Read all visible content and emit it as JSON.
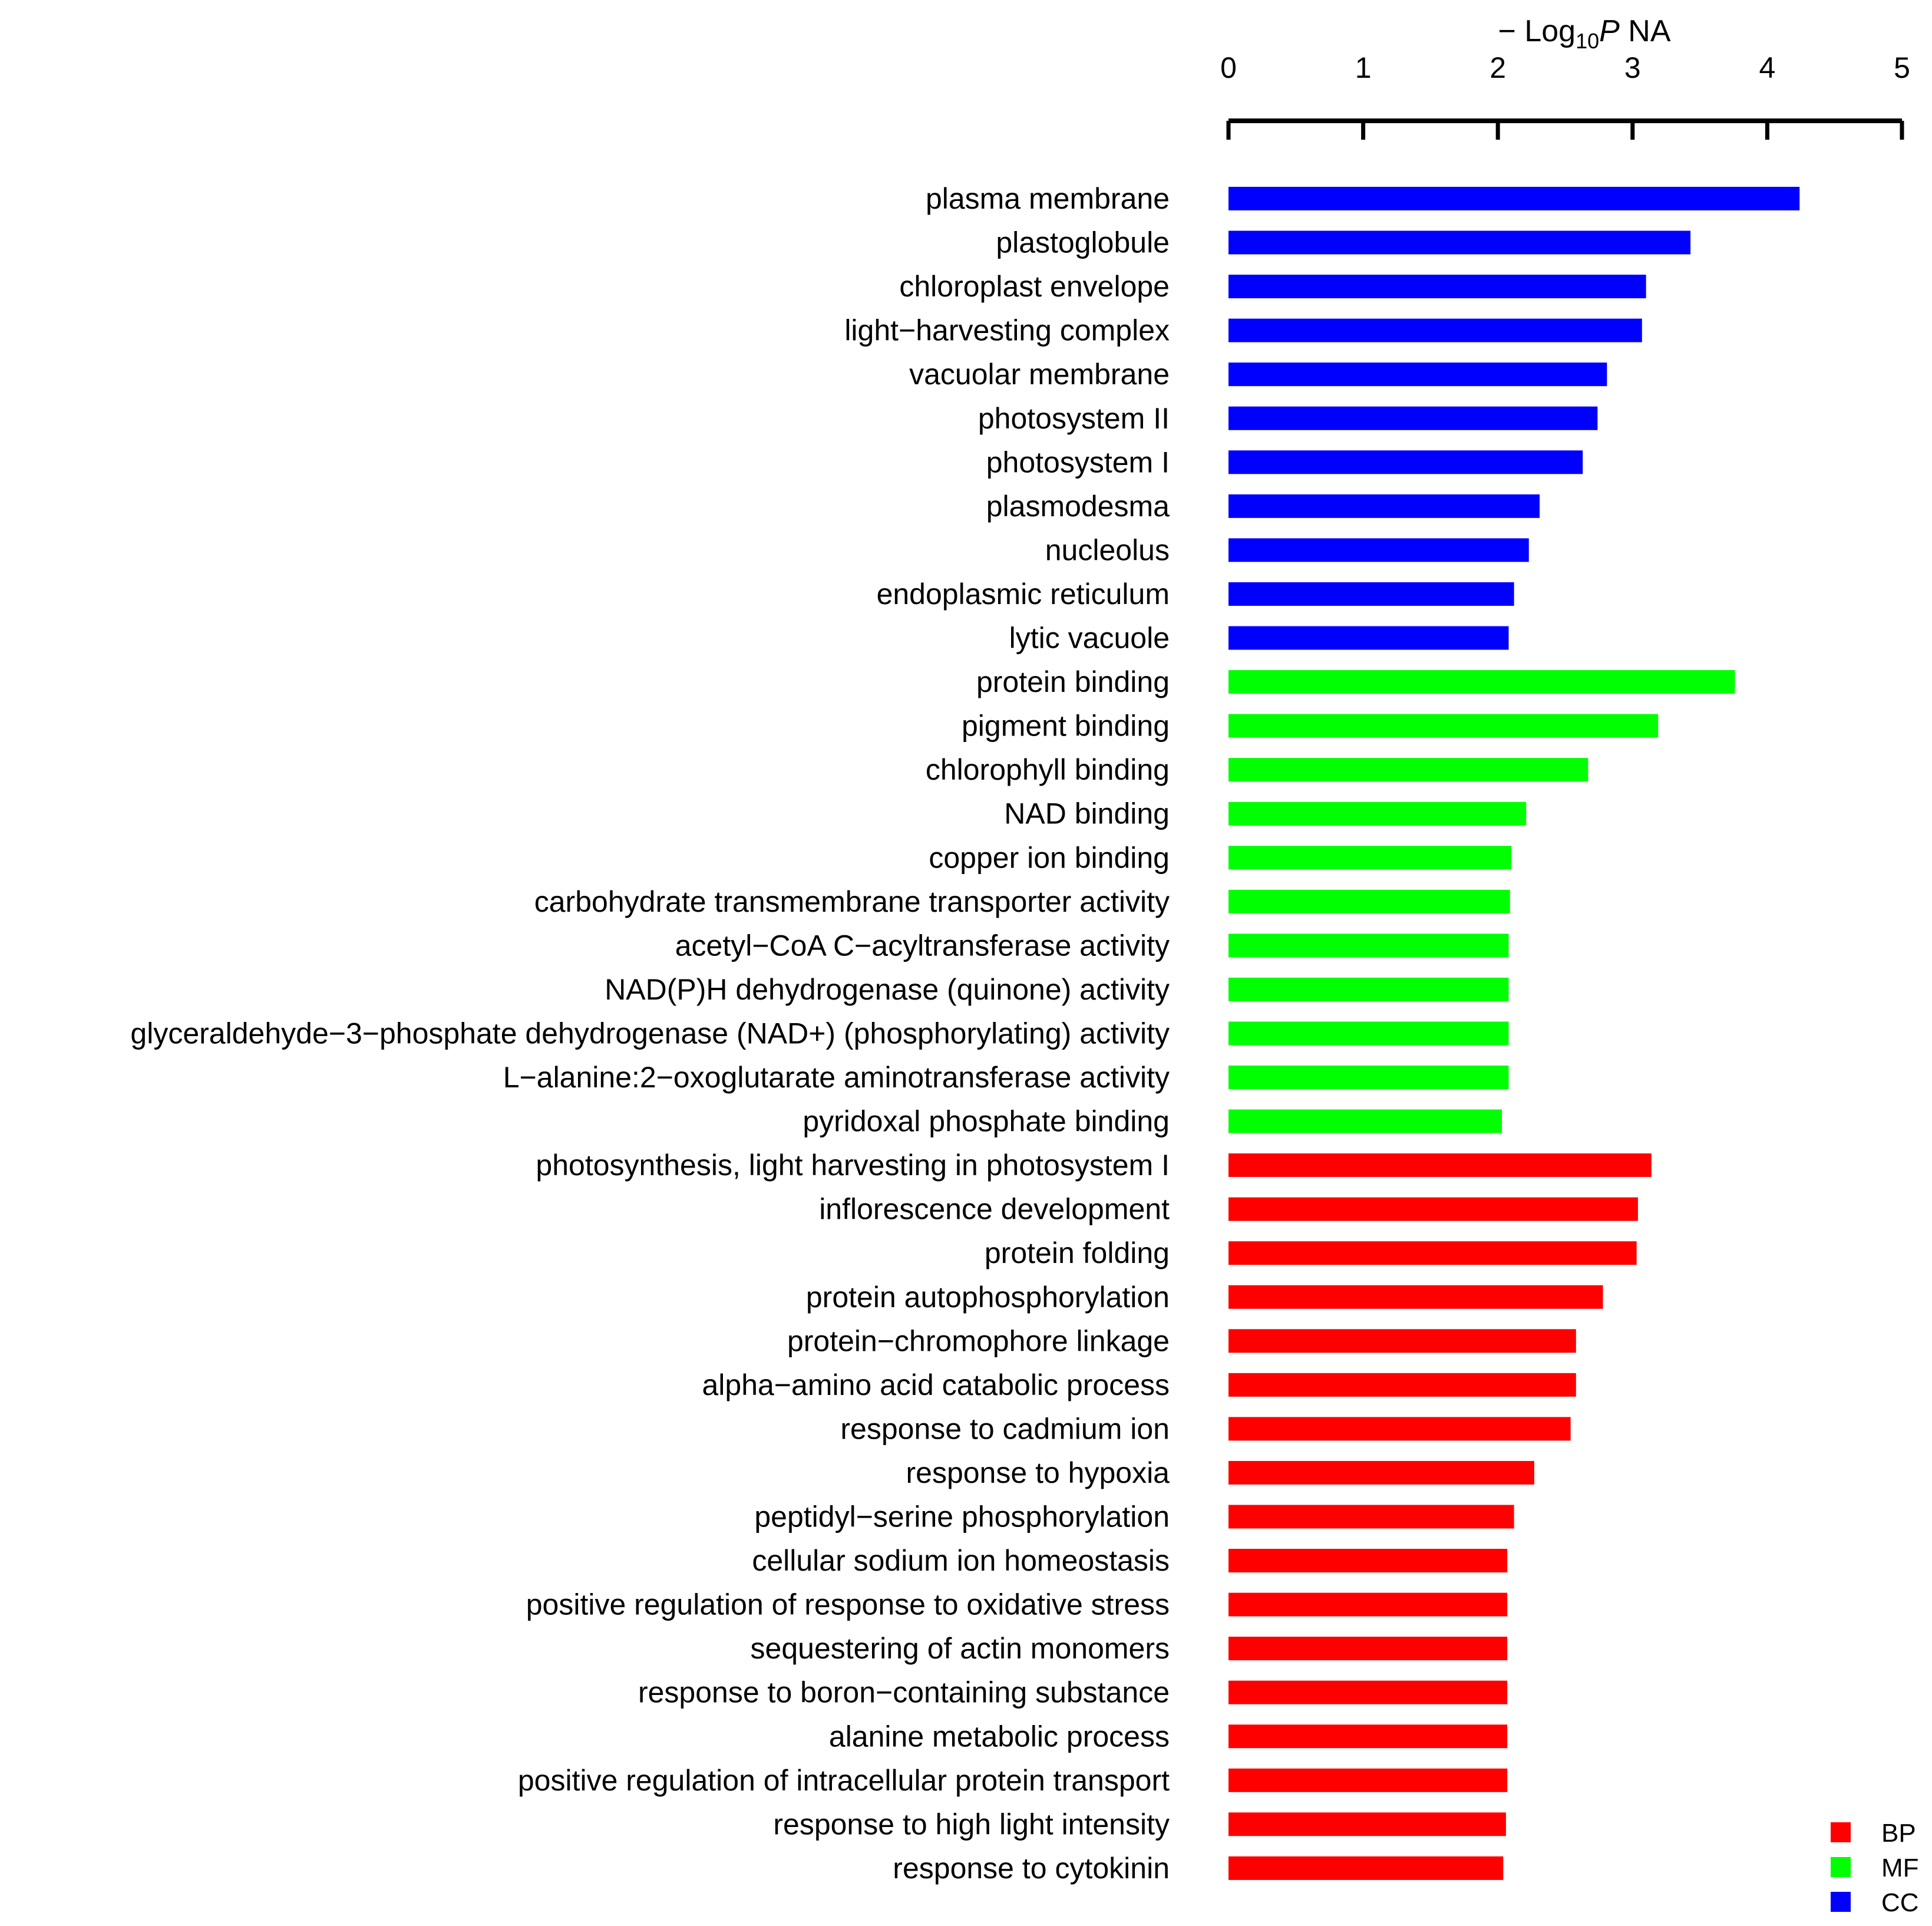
{
  "chart_data": {
    "type": "bar",
    "orientation": "horizontal",
    "axis_title": {
      "prefix": "− Log",
      "subscript": "10",
      "variable": "P",
      "suffix": " NA"
    },
    "xlim": [
      0,
      5
    ],
    "xticks": [
      "0",
      "1",
      "2",
      "3",
      "4",
      "5"
    ],
    "axis_position": "top",
    "grid": false,
    "legend_position": "bottom-right",
    "colors": {
      "BP": "#ff0000",
      "MF": "#00ff00",
      "CC": "#0000ff"
    },
    "legend": [
      {
        "label": "BP",
        "color": "#ff0000"
      },
      {
        "label": "MF",
        "color": "#00ff00"
      },
      {
        "label": "CC",
        "color": "#0000ff"
      }
    ],
    "bars": [
      {
        "label": "plasma membrane",
        "value": 4.24,
        "group": "CC"
      },
      {
        "label": "plastoglobule",
        "value": 3.43,
        "group": "CC"
      },
      {
        "label": "chloroplast envelope",
        "value": 3.1,
        "group": "CC"
      },
      {
        "label": "light−harvesting complex",
        "value": 3.07,
        "group": "CC"
      },
      {
        "label": "vacuolar membrane",
        "value": 2.81,
        "group": "CC"
      },
      {
        "label": "photosystem II",
        "value": 2.74,
        "group": "CC"
      },
      {
        "label": "photosystem I",
        "value": 2.63,
        "group": "CC"
      },
      {
        "label": "plasmodesma",
        "value": 2.31,
        "group": "CC"
      },
      {
        "label": "nucleolus",
        "value": 2.23,
        "group": "CC"
      },
      {
        "label": "endoplasmic reticulum",
        "value": 2.12,
        "group": "CC"
      },
      {
        "label": "lytic vacuole",
        "value": 2.08,
        "group": "CC"
      },
      {
        "label": "protein binding",
        "value": 3.76,
        "group": "MF"
      },
      {
        "label": "pigment binding",
        "value": 3.19,
        "group": "MF"
      },
      {
        "label": "chlorophyll binding",
        "value": 2.67,
        "group": "MF"
      },
      {
        "label": "NAD binding",
        "value": 2.21,
        "group": "MF"
      },
      {
        "label": "copper ion binding",
        "value": 2.1,
        "group": "MF"
      },
      {
        "label": "carbohydrate transmembrane transporter activity",
        "value": 2.09,
        "group": "MF"
      },
      {
        "label": "acetyl−CoA C−acyltransferase activity",
        "value": 2.08,
        "group": "MF"
      },
      {
        "label": "NAD(P)H dehydrogenase (quinone) activity",
        "value": 2.08,
        "group": "MF"
      },
      {
        "label": "glyceraldehyde−3−phosphate dehydrogenase (NAD+) (phosphorylating) activity",
        "value": 2.08,
        "group": "MF"
      },
      {
        "label": "L−alanine:2−oxoglutarate aminotransferase activity",
        "value": 2.08,
        "group": "MF"
      },
      {
        "label": "pyridoxal phosphate binding",
        "value": 2.03,
        "group": "MF"
      },
      {
        "label": "photosynthesis, light harvesting in photosystem I",
        "value": 3.14,
        "group": "BP"
      },
      {
        "label": "inflorescence development",
        "value": 3.04,
        "group": "BP"
      },
      {
        "label": "protein folding",
        "value": 3.03,
        "group": "BP"
      },
      {
        "label": "protein autophosphorylation",
        "value": 2.78,
        "group": "BP"
      },
      {
        "label": "protein−chromophore linkage",
        "value": 2.58,
        "group": "BP"
      },
      {
        "label": "alpha−amino acid catabolic process",
        "value": 2.58,
        "group": "BP"
      },
      {
        "label": "response to cadmium ion",
        "value": 2.54,
        "group": "BP"
      },
      {
        "label": "response to hypoxia",
        "value": 2.27,
        "group": "BP"
      },
      {
        "label": "peptidyl−serine phosphorylation",
        "value": 2.12,
        "group": "BP"
      },
      {
        "label": "cellular sodium ion homeostasis",
        "value": 2.07,
        "group": "BP"
      },
      {
        "label": "positive regulation of response to oxidative stress",
        "value": 2.07,
        "group": "BP"
      },
      {
        "label": "sequestering of actin monomers",
        "value": 2.07,
        "group": "BP"
      },
      {
        "label": "response to boron−containing substance",
        "value": 2.07,
        "group": "BP"
      },
      {
        "label": "alanine metabolic process",
        "value": 2.07,
        "group": "BP"
      },
      {
        "label": "positive regulation of intracellular protein transport",
        "value": 2.07,
        "group": "BP"
      },
      {
        "label": "response to high light intensity",
        "value": 2.06,
        "group": "BP"
      },
      {
        "label": "response to cytokinin",
        "value": 2.04,
        "group": "BP"
      }
    ]
  }
}
